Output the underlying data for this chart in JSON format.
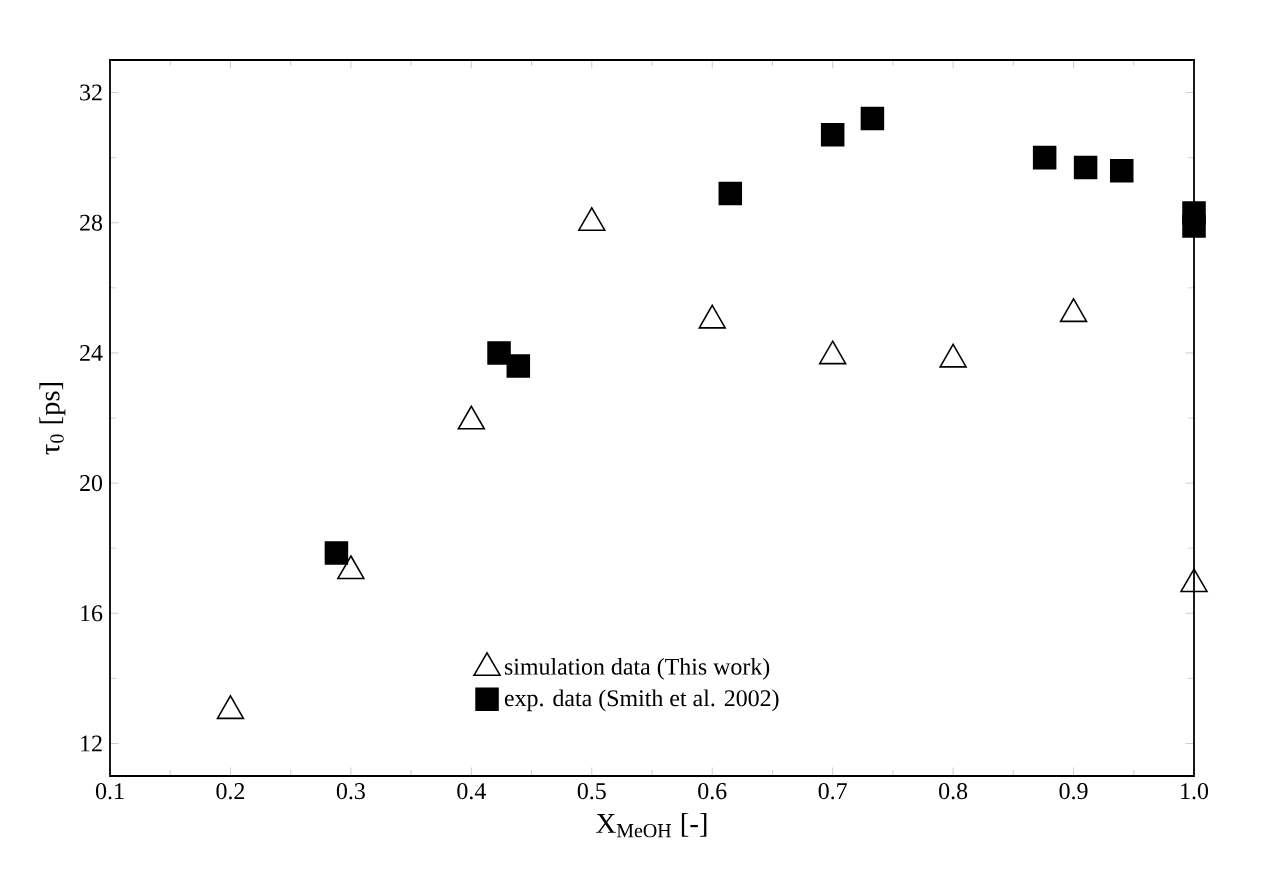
{
  "chart_data": {
    "type": "scatter",
    "xlabel": "X$_{MeOH}$ [-]",
    "ylabel": "τ$_{0}$ [ps]",
    "xlim": [
      0.1,
      1.0
    ],
    "xticks": [
      {
        "value": 0.1,
        "label": "0.1"
      },
      {
        "value": 0.2,
        "label": "0.2"
      },
      {
        "value": 0.3,
        "label": "0.3"
      },
      {
        "value": 0.4,
        "label": "0.4"
      },
      {
        "value": 0.5,
        "label": "0.5"
      },
      {
        "value": 0.6,
        "label": "0.6"
      },
      {
        "value": 0.7,
        "label": "0.7"
      },
      {
        "value": 0.8,
        "label": "0.8"
      },
      {
        "value": 0.9,
        "label": "0.9"
      },
      {
        "value": 1.0,
        "label": "1.0"
      }
    ],
    "ylim": [
      11,
      33
    ],
    "yticks": [
      12,
      16,
      20,
      24,
      28,
      32
    ],
    "grid": false,
    "legend": "bottom",
    "series": [
      {
        "name": "simulation data (This work)",
        "color": "#000000",
        "marker": "triangle",
        "x": [
          0.2,
          0.3,
          0.4,
          0.5,
          0.6,
          0.7,
          0.8,
          0.9,
          1.0
        ],
        "values": [
          13.0,
          17.3,
          21.9,
          28.0,
          25.0,
          23.9,
          23.8,
          25.2,
          16.9
        ]
      },
      {
        "name": "exp. data (Smith et al. 2002)",
        "color": "#000000",
        "marker": "square",
        "x": [
          0.288,
          0.423,
          0.439,
          0.615,
          0.7,
          0.733,
          0.876,
          0.91,
          0.94,
          1.0,
          1.0
        ],
        "values": [
          17.85,
          24.0,
          23.6,
          28.9,
          30.7,
          31.2,
          30.0,
          29.7,
          29.6,
          28.3,
          27.9
        ]
      }
    ]
  }
}
